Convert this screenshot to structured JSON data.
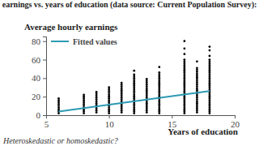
{
  "chart_data": {
    "type": "scatter",
    "title": "earnings vs. years of education (data source: Current Population Survey):",
    "y_label": "Average hourly earnings",
    "x_label": "Years of education",
    "annotations": [
      "Heteroskedastic or homoskedastic?"
    ],
    "xlim": [
      5,
      20
    ],
    "xticks": [
      5,
      10,
      15,
      20
    ],
    "ylim": [
      0,
      85
    ],
    "yticks": [
      0,
      20,
      40,
      60,
      80
    ],
    "legend": "upper-left",
    "series": [
      {
        "type": "scatter",
        "color": "#000000",
        "marker": "circle",
        "x": [
          6,
          6,
          6,
          6,
          6,
          6,
          6,
          6,
          6,
          8,
          8,
          8,
          8,
          8,
          8,
          8,
          8,
          8,
          8,
          8,
          9,
          9,
          9,
          9,
          9,
          9,
          9,
          9,
          9,
          9,
          9,
          9,
          10,
          10,
          10,
          10,
          10,
          10,
          10,
          10,
          10,
          10,
          10,
          10,
          10,
          10,
          10,
          11,
          11,
          11,
          11,
          11,
          11,
          11,
          11,
          11,
          11,
          11,
          11,
          11,
          11,
          11,
          11,
          11,
          12,
          12,
          12,
          12,
          12,
          12,
          12,
          12,
          12,
          12,
          12,
          12,
          12,
          12,
          12,
          12,
          12,
          12,
          12,
          12,
          12,
          12,
          12,
          13,
          13,
          13,
          13,
          13,
          13,
          13,
          13,
          13,
          13,
          13,
          13,
          13,
          13,
          13,
          13,
          13,
          13,
          13,
          14,
          14,
          14,
          14,
          14,
          14,
          14,
          14,
          14,
          14,
          14,
          14,
          14,
          14,
          14,
          14,
          14,
          14,
          14,
          14,
          14,
          14,
          14,
          14,
          16,
          16,
          16,
          16,
          16,
          16,
          16,
          16,
          16,
          16,
          16,
          16,
          16,
          16,
          16,
          16,
          16,
          16,
          16,
          16,
          16,
          16,
          16,
          16,
          16,
          16,
          16,
          16,
          16,
          16,
          16,
          16,
          16,
          17,
          17,
          17,
          17,
          17,
          17,
          17,
          17,
          17,
          17,
          17,
          17,
          17,
          17,
          17,
          17,
          17,
          17,
          17,
          17,
          17,
          17,
          17,
          17,
          17,
          17,
          18,
          18,
          18,
          18,
          18,
          18,
          18,
          18,
          18,
          18,
          18,
          18,
          18,
          18,
          18,
          18,
          18,
          18,
          18,
          18,
          18,
          18,
          18,
          18,
          18,
          18,
          18,
          18,
          18,
          18,
          18,
          18,
          18
        ],
        "values": [
          2,
          4,
          6,
          8,
          10,
          12,
          14,
          16,
          18,
          2,
          4,
          6,
          8,
          10,
          12,
          14,
          16,
          18,
          20,
          22,
          3,
          5,
          7,
          9,
          11,
          13,
          15,
          17,
          19,
          21,
          23,
          25,
          2,
          4,
          6,
          8,
          10,
          12,
          14,
          16,
          18,
          20,
          22,
          24,
          26,
          28,
          30,
          3,
          5,
          7,
          9,
          11,
          13,
          15,
          17,
          19,
          21,
          23,
          25,
          27,
          29,
          31,
          33,
          35,
          2,
          4,
          6,
          8,
          10,
          12,
          14,
          16,
          18,
          20,
          22,
          24,
          26,
          28,
          30,
          32,
          34,
          36,
          38,
          40,
          42,
          44,
          48,
          3,
          5,
          7,
          9,
          11,
          13,
          15,
          17,
          19,
          21,
          23,
          25,
          27,
          29,
          31,
          33,
          35,
          37,
          39,
          2,
          4,
          6,
          8,
          10,
          12,
          14,
          16,
          18,
          20,
          22,
          24,
          26,
          28,
          30,
          32,
          34,
          36,
          38,
          40,
          42,
          44,
          46,
          52,
          2,
          4,
          6,
          8,
          10,
          12,
          14,
          16,
          18,
          20,
          22,
          24,
          26,
          28,
          30,
          32,
          34,
          36,
          38,
          40,
          42,
          44,
          46,
          48,
          50,
          52,
          54,
          56,
          58,
          60,
          66,
          72,
          80,
          3,
          5,
          7,
          9,
          11,
          13,
          15,
          17,
          19,
          21,
          23,
          25,
          27,
          29,
          31,
          33,
          35,
          37,
          39,
          41,
          43,
          45,
          47,
          49,
          51,
          58,
          2,
          4,
          6,
          8,
          10,
          12,
          14,
          16,
          18,
          20,
          22,
          24,
          26,
          28,
          30,
          32,
          34,
          36,
          38,
          40,
          42,
          44,
          46,
          48,
          50,
          52,
          54,
          56,
          58,
          60,
          64,
          70,
          74
        ]
      },
      {
        "name": "Fitted values",
        "type": "line",
        "color": "#2e9ab3",
        "line_style": "solid",
        "x": [
          6,
          18
        ],
        "values": [
          4,
          26
        ]
      }
    ]
  }
}
